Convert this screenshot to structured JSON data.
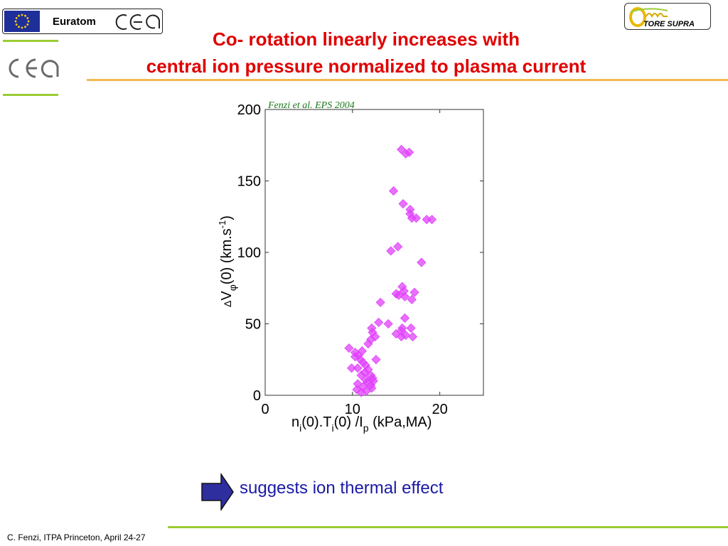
{
  "header": {
    "euratom_label": "Euratom",
    "title_line1": "Co- rotation linearly increases with",
    "title_line2": "central ion pressure normalized to plasma current",
    "tore_supra_label": "TORE SUPRA"
  },
  "colors": {
    "title": "#e00000",
    "accent_green": "#99cc33",
    "accent_orange": "#f2b950",
    "marker": "#e040fb",
    "arrow": "#2e2e9e",
    "note_text": "#1a1aa6"
  },
  "chart_data": {
    "type": "scatter",
    "citation": "Fenzi et al. EPS 2004",
    "xlabel": "n_i(0).T_i(0) /I_p (kPa,MA)",
    "ylabel": "ΔV_φ(0) (km.s⁻¹)",
    "xlim": [
      0,
      25
    ],
    "ylim": [
      0,
      200
    ],
    "xticks": [
      0,
      10,
      20
    ],
    "yticks": [
      0,
      50,
      100,
      150,
      200
    ],
    "grid": false,
    "marker": "diamond",
    "points": [
      [
        15.6,
        172
      ],
      [
        16.1,
        169
      ],
      [
        16.5,
        170
      ],
      [
        14.7,
        143
      ],
      [
        15.8,
        134
      ],
      [
        16.6,
        130
      ],
      [
        16.6,
        127
      ],
      [
        16.8,
        124
      ],
      [
        17.3,
        124
      ],
      [
        18.5,
        123
      ],
      [
        19.1,
        123
      ],
      [
        15.2,
        104
      ],
      [
        14.4,
        101
      ],
      [
        17.9,
        93
      ],
      [
        15.7,
        76
      ],
      [
        15.9,
        73
      ],
      [
        15.0,
        71
      ],
      [
        15.3,
        70
      ],
      [
        16.0,
        69
      ],
      [
        17.1,
        72
      ],
      [
        16.8,
        67
      ],
      [
        13.2,
        65
      ],
      [
        16.0,
        54
      ],
      [
        16.7,
        47
      ],
      [
        15.7,
        47
      ],
      [
        15.6,
        45
      ],
      [
        15.0,
        43
      ],
      [
        16.1,
        42
      ],
      [
        16.9,
        41
      ],
      [
        15.6,
        41
      ],
      [
        13.0,
        51
      ],
      [
        14.1,
        50
      ],
      [
        12.2,
        47
      ],
      [
        12.3,
        44
      ],
      [
        12.6,
        41
      ],
      [
        12.1,
        39
      ],
      [
        11.8,
        36
      ],
      [
        9.6,
        33
      ],
      [
        10.3,
        30
      ],
      [
        10.7,
        28
      ],
      [
        10.3,
        27
      ],
      [
        11.1,
        31
      ],
      [
        10.9,
        25
      ],
      [
        12.7,
        25
      ],
      [
        11.2,
        23
      ],
      [
        11.5,
        21
      ],
      [
        9.9,
        19
      ],
      [
        10.6,
        19
      ],
      [
        11.8,
        18
      ],
      [
        11.4,
        16
      ],
      [
        11.0,
        14
      ],
      [
        12.1,
        14
      ],
      [
        12.3,
        12
      ],
      [
        11.5,
        11
      ],
      [
        12.4,
        10
      ],
      [
        11.7,
        9
      ],
      [
        10.6,
        8
      ],
      [
        12.1,
        7
      ],
      [
        11.2,
        6
      ],
      [
        10.5,
        4
      ],
      [
        11.6,
        3
      ],
      [
        12.2,
        5
      ],
      [
        11.0,
        2
      ]
    ]
  },
  "conclusion": {
    "text": "suggests ion thermal effect"
  },
  "footer": {
    "text": "C. Fenzi, ITPA Princeton, April 24-27"
  }
}
